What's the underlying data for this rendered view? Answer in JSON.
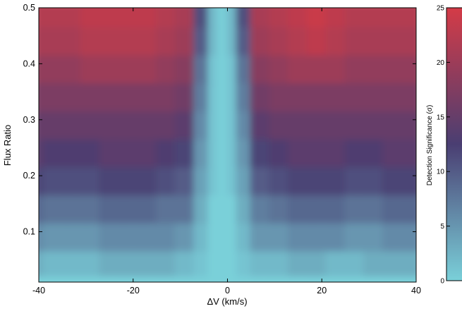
{
  "chart_data": {
    "type": "heatmap",
    "title": "",
    "xlabel": "ΔV (km/s)",
    "ylabel": "Flux Ratio",
    "xlim": [
      -40,
      40
    ],
    "ylim": [
      0.01,
      0.5
    ],
    "x_ticks": [
      "-40",
      "-20",
      "0",
      "20",
      "40"
    ],
    "y_ticks": [
      "0.1",
      "0.2",
      "0.3",
      "0.4",
      "0.5"
    ],
    "colorbar": {
      "label": "Detection Significance (σ)",
      "range": [
        0,
        25
      ],
      "ticks": [
        "0",
        "5",
        "10",
        "15",
        "20",
        "25"
      ],
      "colors": [
        "#7ad0d9",
        "#4a3e72",
        "#d43b47"
      ]
    },
    "x": [
      -40,
      -36,
      -32,
      -28,
      -24,
      -20,
      -16,
      -12,
      -8,
      -4,
      -2,
      0,
      2,
      4,
      8,
      12,
      16,
      20,
      24,
      28,
      32,
      36,
      40
    ],
    "y": [
      0.01,
      0.05,
      0.1,
      0.15,
      0.2,
      0.25,
      0.3,
      0.35,
      0.4,
      0.45,
      0.5
    ],
    "z": [
      [
        0,
        0,
        0,
        0,
        0,
        0,
        0,
        0,
        0,
        0,
        0,
        0,
        0,
        0,
        0,
        0,
        0,
        0,
        0,
        0,
        0,
        0,
        0
      ],
      [
        3,
        2,
        2,
        2,
        3,
        3,
        3,
        3,
        2,
        1,
        0,
        0,
        0,
        1,
        2,
        2,
        3,
        3,
        2,
        2,
        3,
        3,
        3
      ],
      [
        6,
        5,
        5,
        5,
        6,
        6,
        6,
        6,
        5,
        2,
        0,
        0,
        0,
        2,
        5,
        5,
        6,
        6,
        6,
        5,
        5,
        6,
        6
      ],
      [
        9,
        8,
        8,
        8,
        9,
        9,
        9,
        8,
        8,
        3,
        0,
        0,
        0,
        3,
        7,
        8,
        9,
        9,
        9,
        8,
        8,
        9,
        9
      ],
      [
        12,
        11,
        11,
        11,
        12,
        12,
        12,
        11,
        10,
        4,
        1,
        0,
        1,
        4,
        10,
        11,
        12,
        12,
        12,
        11,
        11,
        12,
        12
      ],
      [
        14,
        13,
        13,
        13,
        14,
        14,
        14,
        13,
        12,
        5,
        1,
        0,
        1,
        5,
        12,
        13,
        14,
        14,
        14,
        13,
        13,
        14,
        14
      ],
      [
        15,
        15,
        15,
        15,
        15,
        15,
        15,
        15,
        14,
        6,
        1,
        0,
        1,
        6,
        14,
        15,
        15,
        15,
        15,
        15,
        15,
        15,
        15
      ],
      [
        17,
        17,
        17,
        17,
        17,
        17,
        17,
        17,
        16,
        7,
        1,
        0,
        1,
        7,
        16,
        17,
        17,
        17,
        17,
        17,
        17,
        17,
        17
      ],
      [
        19,
        19,
        19,
        20,
        20,
        20,
        20,
        19,
        18,
        8,
        1,
        0,
        1,
        8,
        18,
        19,
        20,
        20,
        20,
        19,
        19,
        19,
        19
      ],
      [
        21,
        21,
        21,
        22,
        22,
        22,
        22,
        21,
        20,
        10,
        2,
        0,
        2,
        10,
        20,
        21,
        22,
        23,
        22,
        21,
        21,
        21,
        21
      ],
      [
        22,
        22,
        22,
        23,
        23,
        23,
        23,
        22,
        21,
        11,
        2,
        0,
        2,
        11,
        21,
        22,
        23,
        24,
        23,
        22,
        22,
        22,
        22
      ]
    ]
  }
}
